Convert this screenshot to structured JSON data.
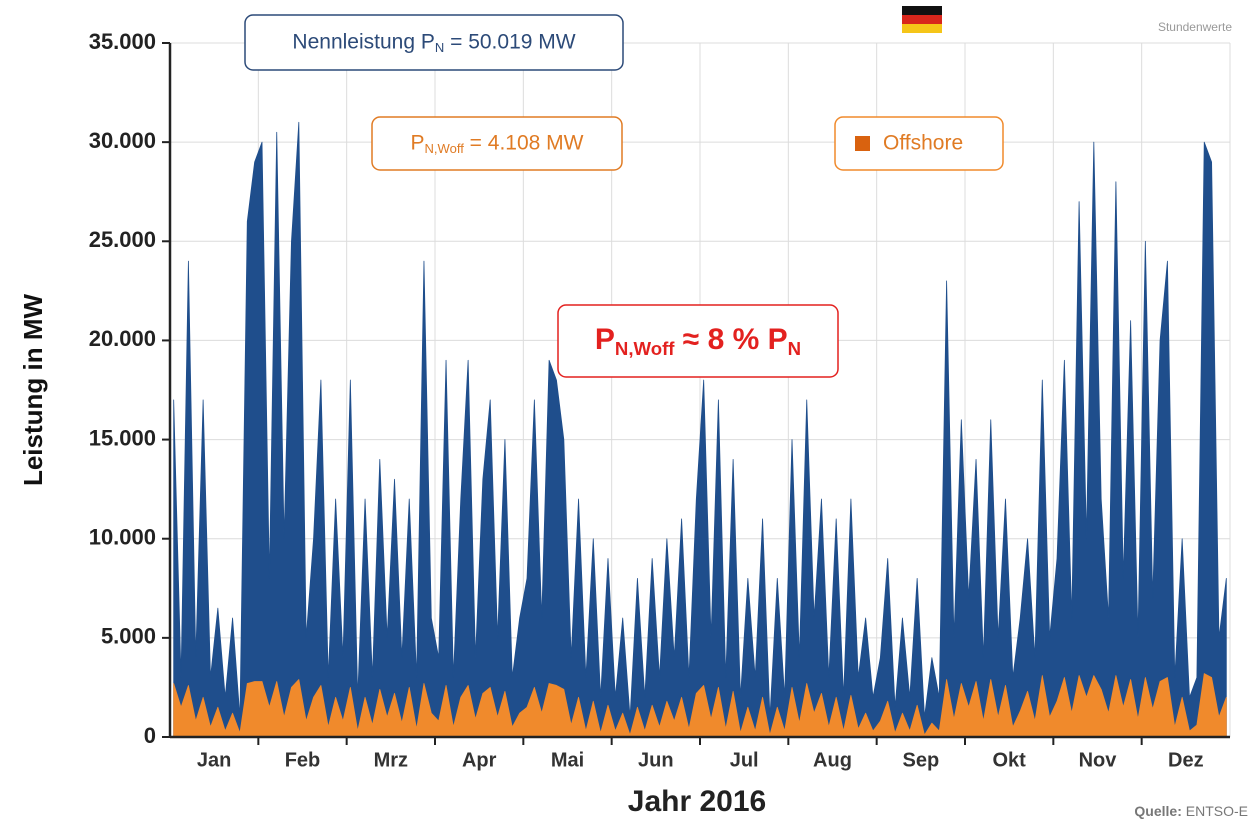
{
  "chart_data": {
    "type": "area",
    "note_top_right": "Stundenwerte",
    "source_label": "Quelle:",
    "source": "ENTSO-E",
    "x_label": "Jahr 2016",
    "y_label": "Leistung in MW",
    "annotations": [
      {
        "segments": [
          "Nennleistung P",
          "N",
          " = 50.019 MW"
        ],
        "color": "#2c4a78"
      },
      {
        "segments": [
          "P",
          "N,Woff",
          " = 4.108 MW"
        ],
        "color": "#e07b24"
      },
      {
        "segments": [
          "P",
          "N,Woff",
          " ≈ 8 % P",
          "N"
        ],
        "color": "#e3211f"
      }
    ],
    "categories": [
      "Jan",
      "Feb",
      "Mrz",
      "Apr",
      "Mai",
      "Jun",
      "Jul",
      "Aug",
      "Sep",
      "Okt",
      "Nov",
      "Dez"
    ],
    "ylim": [
      0,
      35000
    ],
    "yticks": [
      0,
      {
        "value": 5000,
        "label": "5.000"
      },
      {
        "value": 10000,
        "label": "10.000"
      },
      {
        "value": 15000,
        "label": "15.000"
      },
      {
        "value": 20000,
        "label": "20.000"
      },
      {
        "value": 25000,
        "label": "25.000"
      },
      {
        "value": 30000,
        "label": "30.000"
      },
      {
        "value": 35000,
        "label": "35.000"
      }
    ],
    "grid": true,
    "legend": "upper right",
    "series": [
      {
        "color": "#1f4e8c",
        "values": [
          [
            17000,
            3000,
            24000,
            4000,
            17000,
            3000,
            6500,
            2000,
            6000,
            1000,
            26000,
            29000
          ],
          [
            30000,
            8000,
            30500,
            10000,
            25000,
            31000,
            5000,
            10000,
            18000,
            3000,
            12000,
            4000
          ],
          [
            18000,
            2000,
            12000,
            3000,
            14000,
            5000,
            13000,
            4000,
            12000,
            3000,
            24000,
            6000
          ],
          [
            4000,
            19000,
            3000,
            12000,
            19000,
            4000,
            13000,
            17000,
            5000,
            15000,
            3000,
            6000
          ],
          [
            8000,
            17000,
            6000,
            19000,
            18000,
            15000,
            4000,
            12000,
            3000,
            10000,
            2000,
            9000
          ],
          [
            2000,
            6000,
            1000,
            8000,
            2000,
            9000,
            3000,
            10000,
            4000,
            11000,
            3000,
            12000
          ],
          [
            18000,
            5000,
            17000,
            3000,
            14000,
            2000,
            8000,
            3000,
            11000,
            1000,
            8000,
            2000
          ],
          [
            15000,
            4000,
            17000,
            6000,
            12000,
            3000,
            11000,
            2000,
            12000,
            3000,
            6000,
            2000
          ],
          [
            4000,
            9000,
            1500,
            6000,
            2000,
            8000,
            1000,
            4000,
            2000,
            23000,
            5000,
            16000
          ],
          [
            7000,
            14000,
            4000,
            16000,
            5000,
            12000,
            3000,
            6000,
            10000,
            4000,
            18000,
            5000
          ],
          [
            9000,
            19000,
            6000,
            27000,
            10000,
            30000,
            12000,
            6000,
            28000,
            8000,
            21000,
            5000
          ],
          [
            25000,
            7000,
            20000,
            24000,
            3000,
            10000,
            2000,
            3000,
            30000,
            29000,
            5000,
            8000
          ]
        ]
      },
      {
        "name": "Offshore",
        "color": "#f08a2c",
        "values": [
          [
            2700,
            1500,
            2600,
            800,
            2000,
            500,
            1500,
            300,
            1200,
            200,
            2700,
            2800
          ],
          [
            2800,
            1500,
            2800,
            1000,
            2500,
            2900,
            800,
            2000,
            2600,
            500,
            2000,
            800
          ],
          [
            2500,
            300,
            2000,
            600,
            2400,
            1000,
            2200,
            700,
            2500,
            400,
            2700,
            1200
          ],
          [
            800,
            2600,
            500,
            2000,
            2600,
            900,
            2200,
            2500,
            1000,
            2300,
            500,
            1200
          ],
          [
            1500,
            2500,
            1200,
            2700,
            2600,
            2400,
            600,
            2000,
            300,
            1800,
            200,
            1600
          ],
          [
            300,
            1200,
            100,
            1500,
            300,
            1600,
            500,
            1800,
            800,
            2000,
            400,
            2200
          ],
          [
            2600,
            900,
            2500,
            400,
            2300,
            200,
            1500,
            300,
            2000,
            100,
            1500,
            300
          ],
          [
            2500,
            700,
            2700,
            1200,
            2200,
            500,
            2000,
            300,
            2100,
            400,
            1200,
            300
          ],
          [
            800,
            1800,
            200,
            1200,
            300,
            1600,
            100,
            700,
            300,
            2900,
            900,
            2700
          ],
          [
            1500,
            2800,
            800,
            2900,
            1000,
            2600,
            500,
            1300,
            2300,
            800,
            3100,
            1000
          ],
          [
            1800,
            3000,
            1200,
            3100,
            2000,
            3100,
            2400,
            1200,
            3100,
            1500,
            2900,
            900
          ],
          [
            3000,
            1400,
            2800,
            3000,
            500,
            2000,
            300,
            600,
            3200,
            3000,
            1000,
            2000
          ]
        ]
      }
    ]
  }
}
